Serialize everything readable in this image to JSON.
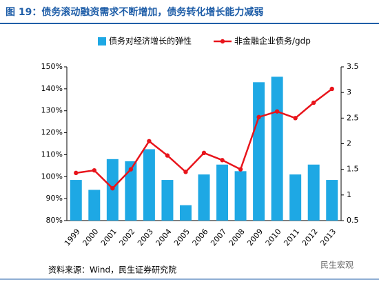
{
  "chart_data": {
    "type": "bar",
    "title": "图 19：债务滚动融资需求不断增加，债务转化增长能力减弱",
    "source": "资料来源：Wind，民生证券研究院",
    "watermark": "民生宏观",
    "categories": [
      "1999",
      "2000",
      "2001",
      "2002",
      "2003",
      "2004",
      "2005",
      "2006",
      "2007",
      "2008",
      "2009",
      "2010",
      "2011",
      "2012",
      "2013"
    ],
    "series": [
      {
        "name": "债务对经济增长的弹性",
        "type": "bar",
        "color": "#1ea8e4",
        "axis": "y",
        "values": [
          98.5,
          94,
          108,
          107,
          112.5,
          98.5,
          87,
          101,
          105.5,
          102.5,
          143,
          145.5,
          101,
          105.5,
          98.5
        ]
      },
      {
        "name": "非金融企业债务/gdp",
        "type": "line",
        "color": "#e8141b",
        "axis": "y2",
        "values": [
          1.43,
          1.48,
          1.13,
          1.5,
          2.05,
          1.77,
          1.45,
          1.82,
          1.68,
          1.5,
          2.52,
          2.63,
          2.5,
          2.8,
          3.07
        ]
      }
    ],
    "ylim": [
      80,
      150
    ],
    "yticks": [
      {
        "value": 80,
        "label": "80%"
      },
      {
        "value": 90,
        "label": "90%"
      },
      {
        "value": 100,
        "label": "100%"
      },
      {
        "value": 110,
        "label": "110%"
      },
      {
        "value": 120,
        "label": "120%"
      },
      {
        "value": 130,
        "label": "130%"
      },
      {
        "value": 140,
        "label": "140%"
      },
      {
        "value": 150,
        "label": "150%"
      }
    ],
    "y2lim": [
      0.5,
      3.5
    ],
    "y2ticks": [
      0.5,
      1,
      1.5,
      2,
      2.5,
      3,
      3.5
    ],
    "grid": false,
    "legend": "top"
  }
}
